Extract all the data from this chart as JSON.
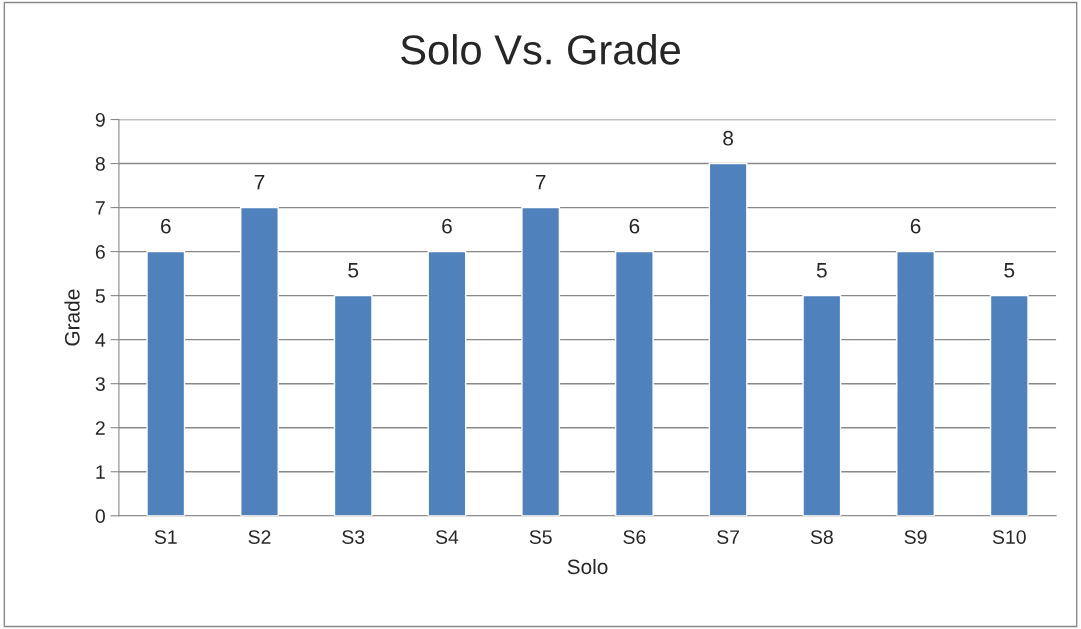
{
  "chart_data": {
    "type": "bar",
    "title": "Solo Vs. Grade",
    "xlabel": "Solo",
    "ylabel": "Grade",
    "categories": [
      "S1",
      "S2",
      "S3",
      "S4",
      "S5",
      "S6",
      "S7",
      "S8",
      "S9",
      "S10"
    ],
    "values": [
      6,
      7,
      5,
      6,
      7,
      6,
      8,
      5,
      6,
      5
    ],
    "color": "#4f81bd",
    "ylim": [
      0,
      9
    ],
    "yticks": [
      0,
      1,
      2,
      3,
      4,
      5,
      6,
      7,
      8,
      9
    ],
    "grid": "y",
    "data_labels": true
  }
}
